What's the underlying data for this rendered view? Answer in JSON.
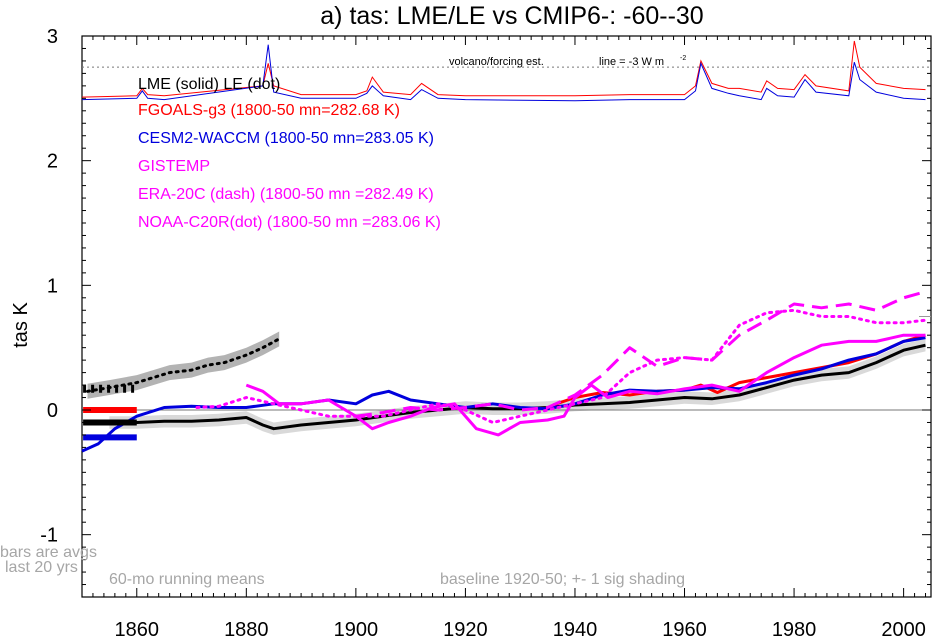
{
  "chart_data": {
    "type": "line",
    "title": "a) tas: LME/LE vs CMIP6-: -60--30",
    "ylabel": "tas K",
    "xlim": [
      1850,
      2005
    ],
    "ylim": [
      -1.5,
      3.0
    ],
    "xticks": [
      1860,
      1880,
      1900,
      1920,
      1940,
      1960,
      1980,
      2000
    ],
    "yticks": [
      -1,
      0,
      1,
      2,
      3
    ],
    "xtick_labels": [
      "1860",
      "1880",
      "1900",
      "1920",
      "1940",
      "1960",
      "1980",
      "2000"
    ],
    "ytick_labels": [
      "-1",
      "0",
      "1",
      "2",
      "3"
    ],
    "legend": [
      {
        "text": "LME (solid)   LE (dot)",
        "color": "#000000"
      },
      {
        "text": "FGOALS-g3 (1800-50 mn=282.68 K)",
        "color": "#ff0000"
      },
      {
        "text": "CESM2-WACCM (1800-50 mn=283.05 K)",
        "color": "#0000dd"
      },
      {
        "text": "GISTEMP",
        "color": "#ff00ff"
      },
      {
        "text": "ERA-20C (dash) (1800-50 mn =282.49 K)",
        "color": "#ff00ff"
      },
      {
        "text": "NOAA-C20R(dot) (1800-50 mn =283.06 K)",
        "color": "#ff00ff"
      }
    ],
    "annotations": {
      "volcano_label": "volcano/forcing est.",
      "line_label": "line = -3 W m",
      "line_label_sup": "-2",
      "bars_note_1": "bars are avgs",
      "bars_note_2": "last 20 yrs",
      "running_means": "60-mo running means",
      "baseline": "baseline 1920-50; +- 1 sig shading"
    },
    "reference_levels": {
      "zero": 0,
      "dotted_forcing_line": 2.75,
      "right_edge_marker": 0.75
    },
    "colors": {
      "lme": "#000000",
      "fgoals": "#ff0000",
      "cesm": "#0000dd",
      "obs": "#ff00ff",
      "shade": "#d9d9d9",
      "dark_shade": "#b3b3b3",
      "note": "#a6a6a6"
    },
    "series": [
      {
        "name": "LME (solid)",
        "style": "solid",
        "color": "#000000",
        "x": [
          1855,
          1860,
          1865,
          1870,
          1875,
          1880,
          1883,
          1885,
          1890,
          1895,
          1900,
          1905,
          1910,
          1915,
          1920,
          1925,
          1930,
          1935,
          1940,
          1945,
          1950,
          1955,
          1960,
          1965,
          1970,
          1975,
          1980,
          1985,
          1990,
          1995,
          2000,
          2004
        ],
        "y": [
          -0.1,
          -0.1,
          -0.09,
          -0.09,
          -0.08,
          -0.06,
          -0.12,
          -0.15,
          -0.12,
          -0.1,
          -0.08,
          -0.05,
          -0.02,
          0.0,
          0.02,
          0.01,
          0.01,
          0.02,
          0.04,
          0.05,
          0.06,
          0.08,
          0.1,
          0.09,
          0.12,
          0.18,
          0.24,
          0.28,
          0.3,
          0.38,
          0.48,
          0.52
        ],
        "band": 0.05
      },
      {
        "name": "LE (dot)",
        "style": "dot",
        "color": "#000000",
        "x": [
          1851,
          1855,
          1860,
          1863,
          1866,
          1870,
          1873,
          1876,
          1880,
          1883,
          1886
        ],
        "y": [
          0.15,
          0.18,
          0.22,
          0.26,
          0.3,
          0.32,
          0.36,
          0.38,
          0.44,
          0.5,
          0.57
        ],
        "band": 0.06
      },
      {
        "name": "FGOALS-g3",
        "style": "solid",
        "color": "#ff0000",
        "x": [
          1936,
          1940,
          1945,
          1950,
          1955,
          1960,
          1963,
          1966,
          1970,
          1975,
          1980,
          1985,
          1990,
          1995,
          2000,
          2004
        ],
        "y": [
          0.04,
          0.1,
          0.14,
          0.12,
          0.15,
          0.16,
          0.2,
          0.14,
          0.22,
          0.26,
          0.3,
          0.34,
          0.38,
          0.45,
          0.55,
          0.6
        ]
      },
      {
        "name": "CESM2-WACCM",
        "style": "solid",
        "color": "#0000dd",
        "x": [
          1850,
          1853,
          1856,
          1860,
          1865,
          1870,
          1875,
          1880,
          1885,
          1890,
          1895,
          1900,
          1903,
          1906,
          1910,
          1915,
          1920,
          1925,
          1930,
          1935,
          1940,
          1945,
          1950,
          1955,
          1960,
          1965,
          1970,
          1975,
          1980,
          1985,
          1990,
          1995,
          2000,
          2004
        ],
        "y": [
          -0.33,
          -0.27,
          -0.15,
          -0.05,
          0.02,
          0.03,
          0.02,
          0.02,
          0.05,
          0.05,
          0.08,
          0.05,
          0.12,
          0.15,
          0.08,
          0.05,
          0.02,
          0.05,
          0.02,
          0.01,
          0.05,
          0.12,
          0.16,
          0.15,
          0.16,
          0.18,
          0.17,
          0.22,
          0.28,
          0.33,
          0.4,
          0.45,
          0.55,
          0.58
        ]
      },
      {
        "name": "GISTEMP",
        "style": "solid",
        "color": "#ff00ff",
        "x": [
          1880,
          1883,
          1886,
          1890,
          1895,
          1900,
          1903,
          1906,
          1910,
          1914,
          1918,
          1922,
          1926,
          1930,
          1935,
          1938,
          1940,
          1943,
          1946,
          1950,
          1955,
          1960,
          1965,
          1970,
          1975,
          1980,
          1985,
          1990,
          1995,
          2000,
          2004
        ],
        "y": [
          0.2,
          0.15,
          0.05,
          0.05,
          0.08,
          -0.05,
          -0.15,
          -0.1,
          -0.05,
          0.02,
          0.05,
          -0.15,
          -0.2,
          -0.1,
          -0.08,
          -0.05,
          0.1,
          0.2,
          0.1,
          0.15,
          0.13,
          0.17,
          0.2,
          0.15,
          0.3,
          0.42,
          0.52,
          0.55,
          0.55,
          0.6,
          0.6
        ]
      },
      {
        "name": "ERA-20C (dash)",
        "style": "dash",
        "color": "#ff00ff",
        "x": [
          1900,
          1905,
          1910,
          1915,
          1920,
          1925,
          1930,
          1935,
          1940,
          1945,
          1950,
          1955,
          1960,
          1965,
          1970,
          1975,
          1980,
          1985,
          1990,
          1995,
          2000,
          2004
        ],
        "y": [
          -0.05,
          -0.02,
          0.02,
          0.0,
          0.02,
          0.05,
          0.0,
          0.02,
          0.12,
          0.28,
          0.5,
          0.35,
          0.42,
          0.4,
          0.6,
          0.72,
          0.85,
          0.82,
          0.85,
          0.8,
          0.9,
          0.95
        ]
      },
      {
        "name": "NOAA-C20R(dot)",
        "style": "dot",
        "color": "#ff00ff",
        "x": [
          1871,
          1875,
          1880,
          1885,
          1890,
          1895,
          1900,
          1905,
          1910,
          1915,
          1920,
          1925,
          1930,
          1935,
          1940,
          1945,
          1950,
          1955,
          1960,
          1965,
          1970,
          1975,
          1980,
          1985,
          1990,
          1995,
          2000,
          2004
        ],
        "y": [
          0.02,
          0.03,
          0.1,
          0.05,
          0.0,
          -0.05,
          -0.05,
          -0.05,
          0.0,
          0.05,
          0.0,
          -0.1,
          -0.05,
          0.0,
          0.05,
          0.1,
          0.3,
          0.4,
          0.42,
          0.4,
          0.68,
          0.78,
          0.8,
          0.75,
          0.75,
          0.7,
          0.7,
          0.72
        ]
      }
    ],
    "bar_avgs": [
      {
        "name": "LE bar",
        "color": "#000000",
        "y": 0.17,
        "style": "dot"
      },
      {
        "name": "FGOALS bar",
        "color": "#ff0000",
        "y": 0.0
      },
      {
        "name": "LME bar",
        "color": "#000000",
        "y": -0.1
      },
      {
        "name": "CESM bar",
        "color": "#0000dd",
        "y": -0.22
      }
    ],
    "forcing_series": [
      {
        "name": "FGOALS forcing",
        "color": "#ff0000",
        "x": [
          1850,
          1860,
          1861,
          1862,
          1865,
          1883,
          1884,
          1885,
          1890,
          1900,
          1902,
          1903,
          1905,
          1910,
          1912,
          1915,
          1920,
          1940,
          1950,
          1960,
          1962,
          1963,
          1965,
          1968,
          1970,
          1974,
          1975,
          1977,
          1980,
          1982,
          1984,
          1990,
          1991,
          1992,
          1995,
          2000,
          2004
        ],
        "y": [
          2.51,
          2.52,
          2.58,
          2.53,
          2.52,
          2.6,
          2.78,
          2.6,
          2.53,
          2.53,
          2.56,
          2.67,
          2.55,
          2.53,
          2.62,
          2.53,
          2.52,
          2.52,
          2.53,
          2.53,
          2.6,
          2.8,
          2.62,
          2.58,
          2.58,
          2.55,
          2.64,
          2.58,
          2.57,
          2.69,
          2.6,
          2.56,
          2.96,
          2.75,
          2.62,
          2.58,
          2.57
        ]
      },
      {
        "name": "CESM forcing",
        "color": "#0000dd",
        "x": [
          1850,
          1860,
          1861,
          1862,
          1865,
          1883,
          1884,
          1885,
          1890,
          1900,
          1902,
          1903,
          1905,
          1910,
          1912,
          1915,
          1920,
          1940,
          1950,
          1960,
          1962,
          1963,
          1965,
          1968,
          1970,
          1974,
          1975,
          1977,
          1980,
          1982,
          1984,
          1990,
          1991,
          1992,
          1995,
          2000,
          2004
        ],
        "y": [
          2.49,
          2.5,
          2.56,
          2.5,
          2.49,
          2.6,
          2.93,
          2.55,
          2.5,
          2.5,
          2.54,
          2.6,
          2.52,
          2.49,
          2.57,
          2.5,
          2.49,
          2.48,
          2.49,
          2.49,
          2.56,
          2.78,
          2.58,
          2.54,
          2.52,
          2.49,
          2.58,
          2.52,
          2.51,
          2.65,
          2.55,
          2.52,
          2.79,
          2.65,
          2.55,
          2.5,
          2.49
        ]
      }
    ]
  }
}
